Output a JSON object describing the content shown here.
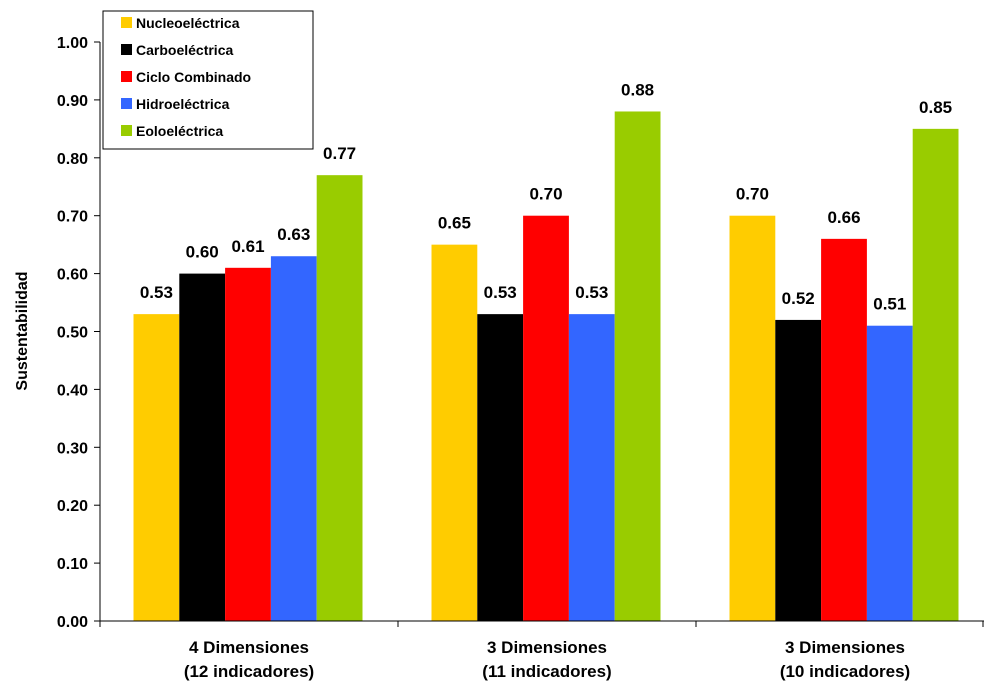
{
  "chart_data": {
    "type": "bar",
    "categories": [
      [
        "4 Dimensiones",
        "(12 indicadores)"
      ],
      [
        "3 Dimensiones",
        "(11 indicadores)"
      ],
      [
        "3 Dimensiones",
        "(10 indicadores)"
      ]
    ],
    "series": [
      {
        "name": "Nucleoeléctrica",
        "color": "#FFCC00",
        "values": [
          0.53,
          0.65,
          0.7
        ]
      },
      {
        "name": "Carboeléctrica",
        "color": "#000000",
        "values": [
          0.6,
          0.53,
          0.52
        ]
      },
      {
        "name": "Ciclo Combinado",
        "color": "#FF0000",
        "values": [
          0.61,
          0.7,
          0.66
        ]
      },
      {
        "name": "Hidroeléctrica",
        "color": "#3366FF",
        "values": [
          0.63,
          0.53,
          0.51
        ]
      },
      {
        "name": "Eoloeléctrica",
        "color": "#99CC00",
        "values": [
          0.77,
          0.88,
          0.85
        ]
      }
    ],
    "ylabel": "Sustentabilidad",
    "ylim": [
      0,
      1.0
    ],
    "yticks": [
      "0.00",
      "0.10",
      "0.20",
      "0.30",
      "0.40",
      "0.50",
      "0.60",
      "0.70",
      "0.80",
      "0.90",
      "1.00"
    ],
    "value_labels": [
      [
        "0.53",
        "0.60",
        "0.61",
        "0.63",
        "0.77"
      ],
      [
        "0.65",
        "0.53",
        "0.70",
        "0.53",
        "0.88"
      ],
      [
        "0.70",
        "0.52",
        "0.66",
        "0.51",
        "0.85"
      ]
    ],
    "grid": false,
    "legend_position": "top-left"
  }
}
